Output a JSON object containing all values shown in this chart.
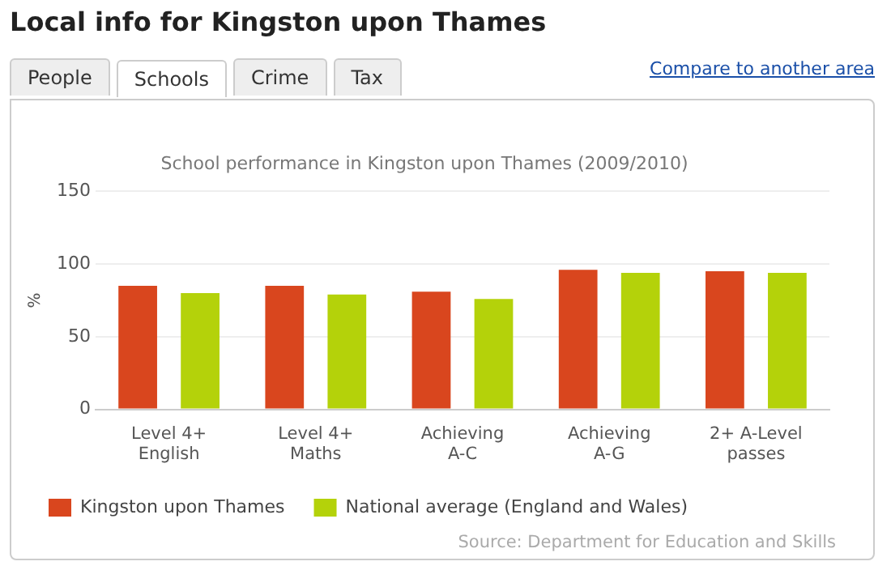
{
  "chart_data": {
    "type": "bar",
    "title": "Local info for Kingston upon Thames",
    "subtitle": "School performance in Kingston upon Thames (2009/2010)",
    "ylabel": "%",
    "categories": [
      "Level 4+\nEnglish",
      "Level 4+\nMaths",
      "Achieving\nA-C",
      "Achieving\nA-G",
      "2+ A-Level\npasses"
    ],
    "series": [
      {
        "name": "Kingston upon Thames",
        "color": "#d9461e",
        "values": [
          85,
          85,
          81,
          96,
          95
        ]
      },
      {
        "name": "National average (England and Wales)",
        "color": "#b4d20a",
        "values": [
          80,
          79,
          76,
          94,
          94
        ]
      }
    ],
    "ylim": [
      0,
      150
    ],
    "yticks": [
      0,
      50,
      100,
      150
    ],
    "grid": "y",
    "legend": "bottom left",
    "annotations": [
      "People",
      "Schools",
      "Crime",
      "Tax",
      "Compare to another area",
      "Source: Department for Education and Skills"
    ]
  }
}
